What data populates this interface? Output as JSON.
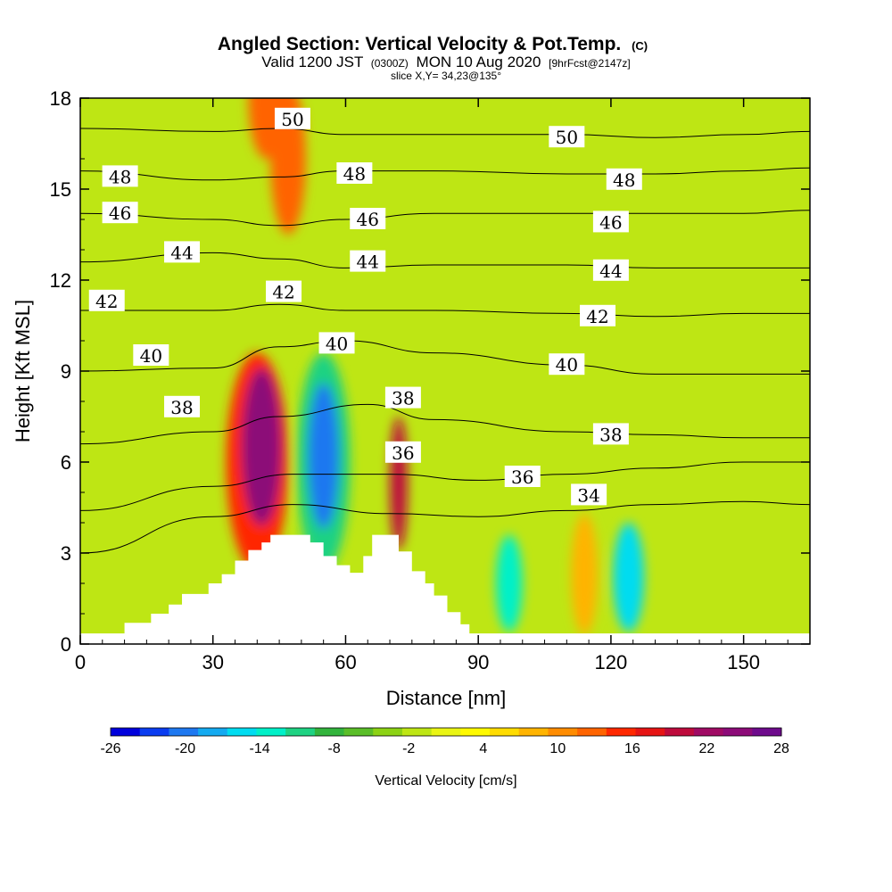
{
  "chart_data": {
    "type": "contour",
    "title": "Angled Section: Vertical Velocity & Pot.Temp.",
    "title_mark": "(C)",
    "subtitle_parts": [
      "Valid 1200 JST",
      "(0300Z)",
      "MON 10 Aug 2020",
      "[9hrFcst@2147z]"
    ],
    "slice_label": "slice X,Y= 34,23@135°",
    "xlabel": "Distance [nm]",
    "ylabel": "Height [Kft MSL]",
    "xlim": [
      0,
      165
    ],
    "ylim": [
      0,
      18
    ],
    "xticks": [
      0,
      30,
      60,
      90,
      120,
      150
    ],
    "yticks": [
      0,
      3,
      6,
      9,
      12,
      15,
      18
    ],
    "colorbar": {
      "label": "Vertical Velocity [cm/s]",
      "tick_labels": [
        "-26",
        "-20",
        "-14",
        "-8",
        "-2",
        "4",
        "10",
        "16",
        "22",
        "28"
      ],
      "colors": [
        "#0000dc",
        "#0a3cf0",
        "#1e78f0",
        "#14aaf0",
        "#00dcf0",
        "#00f0c8",
        "#1ed282",
        "#32b43c",
        "#5abe28",
        "#8cd214",
        "#bee614",
        "#eaf514",
        "#fffa00",
        "#ffdc00",
        "#ffb400",
        "#ff8c00",
        "#ff6400",
        "#ff2800",
        "#e61414",
        "#be0a3c",
        "#a00a64",
        "#8c0a78",
        "#6e0a8c"
      ]
    },
    "velocity_features": [
      {
        "x": 41,
        "y": 6.5,
        "rx": 4.5,
        "ry": 2.6,
        "value": 26
      },
      {
        "x": 40,
        "y": 6.0,
        "rx": 7,
        "ry": 3.6,
        "value": 16
      },
      {
        "x": 55,
        "y": 6.2,
        "rx": 3.5,
        "ry": 2.4,
        "value": -22
      },
      {
        "x": 55,
        "y": 6.0,
        "rx": 6,
        "ry": 3.6,
        "value": -12
      },
      {
        "x": 72,
        "y": 5.3,
        "rx": 2,
        "ry": 2.2,
        "value": 20
      },
      {
        "x": 97,
        "y": 2.0,
        "rx": 3,
        "ry": 1.6,
        "value": -14
      },
      {
        "x": 124,
        "y": 2.2,
        "rx": 3.5,
        "ry": 1.8,
        "value": -16
      },
      {
        "x": 114,
        "y": 2.3,
        "rx": 3,
        "ry": 2.0,
        "value": 8
      },
      {
        "x": 47,
        "y": 16,
        "rx": 4,
        "ry": 2.5,
        "value": 14
      },
      {
        "x": 42,
        "y": 18,
        "rx": 4,
        "ry": 2,
        "value": 14
      }
    ],
    "isentropes": [
      {
        "theta": 34,
        "points": [
          [
            0,
            3.0
          ],
          [
            30,
            4.2
          ],
          [
            48,
            4.6
          ],
          [
            70,
            4.3
          ],
          [
            90,
            4.2
          ],
          [
            110,
            4.4
          ],
          [
            130,
            4.6
          ],
          [
            150,
            4.7
          ],
          [
            165,
            4.6
          ]
        ]
      },
      {
        "theta": 36,
        "points": [
          [
            0,
            4.4
          ],
          [
            30,
            5.2
          ],
          [
            48,
            5.6
          ],
          [
            70,
            5.6
          ],
          [
            90,
            5.4
          ],
          [
            110,
            5.6
          ],
          [
            130,
            5.8
          ],
          [
            150,
            6.0
          ],
          [
            165,
            6.0
          ]
        ]
      },
      {
        "theta": 38,
        "points": [
          [
            0,
            6.6
          ],
          [
            30,
            7.0
          ],
          [
            45,
            7.5
          ],
          [
            65,
            7.9
          ],
          [
            80,
            7.4
          ],
          [
            110,
            7.0
          ],
          [
            130,
            6.9
          ],
          [
            150,
            6.8
          ],
          [
            165,
            6.8
          ]
        ]
      },
      {
        "theta": 40,
        "points": [
          [
            0,
            9.0
          ],
          [
            30,
            9.1
          ],
          [
            45,
            9.8
          ],
          [
            60,
            10.0
          ],
          [
            80,
            9.6
          ],
          [
            110,
            9.2
          ],
          [
            130,
            8.9
          ],
          [
            150,
            8.9
          ],
          [
            165,
            8.9
          ]
        ]
      },
      {
        "theta": 42,
        "points": [
          [
            0,
            11.0
          ],
          [
            30,
            11.0
          ],
          [
            45,
            11.2
          ],
          [
            60,
            11.0
          ],
          [
            80,
            11.0
          ],
          [
            110,
            10.9
          ],
          [
            130,
            10.8
          ],
          [
            150,
            10.9
          ],
          [
            165,
            10.9
          ]
        ]
      },
      {
        "theta": 44,
        "points": [
          [
            0,
            12.6
          ],
          [
            30,
            12.9
          ],
          [
            45,
            12.7
          ],
          [
            60,
            12.4
          ],
          [
            80,
            12.5
          ],
          [
            110,
            12.5
          ],
          [
            130,
            12.4
          ],
          [
            150,
            12.4
          ],
          [
            165,
            12.4
          ]
        ]
      },
      {
        "theta": 46,
        "points": [
          [
            0,
            14.2
          ],
          [
            30,
            14.0
          ],
          [
            45,
            13.8
          ],
          [
            60,
            14.0
          ],
          [
            80,
            14.2
          ],
          [
            110,
            14.2
          ],
          [
            130,
            14.2
          ],
          [
            150,
            14.2
          ],
          [
            165,
            14.3
          ]
        ]
      },
      {
        "theta": 48,
        "points": [
          [
            0,
            15.6
          ],
          [
            30,
            15.3
          ],
          [
            45,
            15.4
          ],
          [
            60,
            15.6
          ],
          [
            80,
            15.6
          ],
          [
            110,
            15.5
          ],
          [
            130,
            15.5
          ],
          [
            150,
            15.6
          ],
          [
            165,
            15.7
          ]
        ]
      },
      {
        "theta": 50,
        "points": [
          [
            0,
            17.0
          ],
          [
            30,
            16.9
          ],
          [
            45,
            17.0
          ],
          [
            60,
            16.8
          ],
          [
            80,
            16.8
          ],
          [
            110,
            16.8
          ],
          [
            130,
            16.7
          ],
          [
            150,
            16.8
          ],
          [
            165,
            16.9
          ]
        ]
      }
    ],
    "isentrope_labels": [
      {
        "text": "50",
        "x": 48,
        "y": 17.3
      },
      {
        "text": "50",
        "x": 110,
        "y": 16.7
      },
      {
        "text": "48",
        "x": 9,
        "y": 15.4
      },
      {
        "text": "48",
        "x": 62,
        "y": 15.5
      },
      {
        "text": "48",
        "x": 123,
        "y": 15.3
      },
      {
        "text": "46",
        "x": 9,
        "y": 14.2
      },
      {
        "text": "46",
        "x": 65,
        "y": 14.0
      },
      {
        "text": "46",
        "x": 120,
        "y": 13.9
      },
      {
        "text": "44",
        "x": 23,
        "y": 12.9
      },
      {
        "text": "44",
        "x": 65,
        "y": 12.6
      },
      {
        "text": "44",
        "x": 120,
        "y": 12.3
      },
      {
        "text": "42",
        "x": 6,
        "y": 11.3
      },
      {
        "text": "42",
        "x": 46,
        "y": 11.6
      },
      {
        "text": "42",
        "x": 117,
        "y": 10.8
      },
      {
        "text": "40",
        "x": 16,
        "y": 9.5
      },
      {
        "text": "40",
        "x": 58,
        "y": 9.9
      },
      {
        "text": "40",
        "x": 110,
        "y": 9.2
      },
      {
        "text": "38",
        "x": 23,
        "y": 7.8
      },
      {
        "text": "38",
        "x": 73,
        "y": 8.1
      },
      {
        "text": "38",
        "x": 120,
        "y": 6.9
      },
      {
        "text": "36",
        "x": 73,
        "y": 6.3
      },
      {
        "text": "36",
        "x": 100,
        "y": 5.5
      },
      {
        "text": "34",
        "x": 115,
        "y": 4.9
      }
    ],
    "terrain": [
      [
        0,
        0.35
      ],
      [
        10,
        0.35
      ],
      [
        10,
        0.7
      ],
      [
        16,
        0.7
      ],
      [
        16,
        1.0
      ],
      [
        20,
        1.0
      ],
      [
        20,
        1.3
      ],
      [
        23,
        1.3
      ],
      [
        23,
        1.65
      ],
      [
        29,
        1.65
      ],
      [
        29,
        2.0
      ],
      [
        32,
        2.0
      ],
      [
        32,
        2.3
      ],
      [
        35,
        2.3
      ],
      [
        35,
        2.75
      ],
      [
        38,
        2.75
      ],
      [
        38,
        3.1
      ],
      [
        41,
        3.1
      ],
      [
        41,
        3.35
      ],
      [
        43,
        3.35
      ],
      [
        43,
        3.6
      ],
      [
        52,
        3.6
      ],
      [
        52,
        3.35
      ],
      [
        55,
        3.35
      ],
      [
        55,
        2.9
      ],
      [
        58,
        2.9
      ],
      [
        58,
        2.6
      ],
      [
        61,
        2.6
      ],
      [
        61,
        2.35
      ],
      [
        64,
        2.35
      ],
      [
        64,
        2.9
      ],
      [
        66,
        2.9
      ],
      [
        66,
        3.6
      ],
      [
        72,
        3.6
      ],
      [
        72,
        3.05
      ],
      [
        75,
        3.05
      ],
      [
        75,
        2.4
      ],
      [
        78,
        2.4
      ],
      [
        78,
        2.0
      ],
      [
        80,
        2.0
      ],
      [
        80,
        1.6
      ],
      [
        83,
        1.6
      ],
      [
        83,
        1.05
      ],
      [
        86,
        1.05
      ],
      [
        86,
        0.65
      ],
      [
        88,
        0.65
      ],
      [
        88,
        0.35
      ],
      [
        165,
        0.35
      ]
    ]
  }
}
